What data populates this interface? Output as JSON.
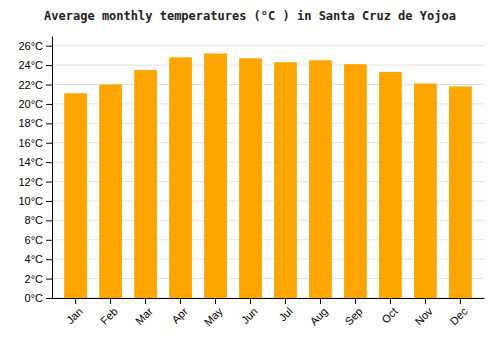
{
  "chart_data": {
    "type": "bar",
    "title": "Average monthly temperatures (°C ) in Santa Cruz de Yojoa",
    "categories": [
      "Jan",
      "Feb",
      "Mar",
      "Apr",
      "May",
      "Jun",
      "Jul",
      "Aug",
      "Sep",
      "Oct",
      "Nov",
      "Dec"
    ],
    "values": [
      21.1,
      22.0,
      23.5,
      24.8,
      25.2,
      24.7,
      24.3,
      24.5,
      24.1,
      23.3,
      22.1,
      21.8
    ],
    "color": "#FFA500",
    "ylim": [
      0,
      27
    ],
    "yticks": [
      {
        "value": 0,
        "label": "0°C"
      },
      {
        "value": 2,
        "label": "2°C"
      },
      {
        "value": 4,
        "label": "4°C"
      },
      {
        "value": 6,
        "label": "6°C"
      },
      {
        "value": 8,
        "label": "8°C"
      },
      {
        "value": 10,
        "label": "10°C"
      },
      {
        "value": 12,
        "label": "12°C"
      },
      {
        "value": 14,
        "label": "14°C"
      },
      {
        "value": 16,
        "label": "16°C"
      },
      {
        "value": 18,
        "label": "18°C"
      },
      {
        "value": 20,
        "label": "20°C"
      },
      {
        "value": 22,
        "label": "22°C"
      },
      {
        "value": 24,
        "label": "24°C"
      },
      {
        "value": 26,
        "label": "26°C"
      }
    ],
    "grid": true
  }
}
